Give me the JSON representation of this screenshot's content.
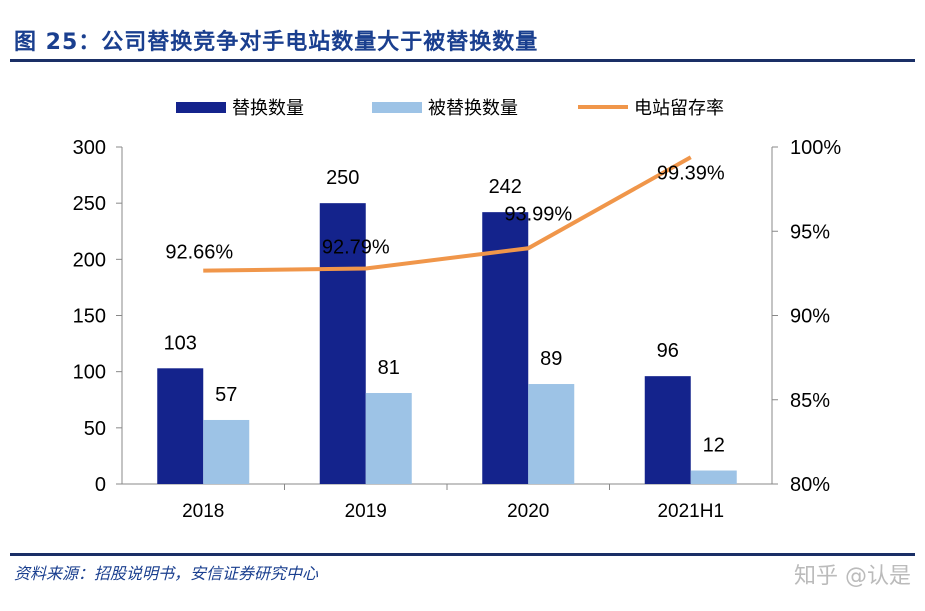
{
  "title": "图 25：公司替换竞争对手电站数量大于被替换数量",
  "source": "资料来源：招股说明书，安信证券研究中心",
  "watermark": "知乎 @认是",
  "colors": {
    "title": "#1a3f8f",
    "replace": "#14238c",
    "replaced": "#9dc3e6",
    "retention": "#f0964a"
  },
  "chart_data": {
    "type": "bar+line",
    "categories": [
      "2018",
      "2019",
      "2020",
      "2021H1"
    ],
    "series": [
      {
        "name": "替换数量",
        "type": "bar",
        "axis": "left",
        "values": [
          103,
          250,
          242,
          96
        ]
      },
      {
        "name": "被替换数量",
        "type": "bar",
        "axis": "left",
        "values": [
          57,
          81,
          89,
          12
        ]
      },
      {
        "name": "电站留存率",
        "type": "line",
        "axis": "right",
        "values": [
          92.66,
          92.79,
          93.99,
          99.39
        ],
        "labels": [
          "92.66%",
          "92.79%",
          "93.99%",
          "99.39%"
        ]
      }
    ],
    "left_axis": {
      "ylim": [
        0,
        300
      ],
      "ticks": [
        "0",
        "50",
        "100",
        "150",
        "200",
        "250",
        "300"
      ]
    },
    "right_axis": {
      "ylim": [
        80,
        100
      ],
      "ticks": [
        "80%",
        "85%",
        "90%",
        "95%",
        "100%"
      ]
    },
    "legend_placement": "top",
    "grid": false
  }
}
